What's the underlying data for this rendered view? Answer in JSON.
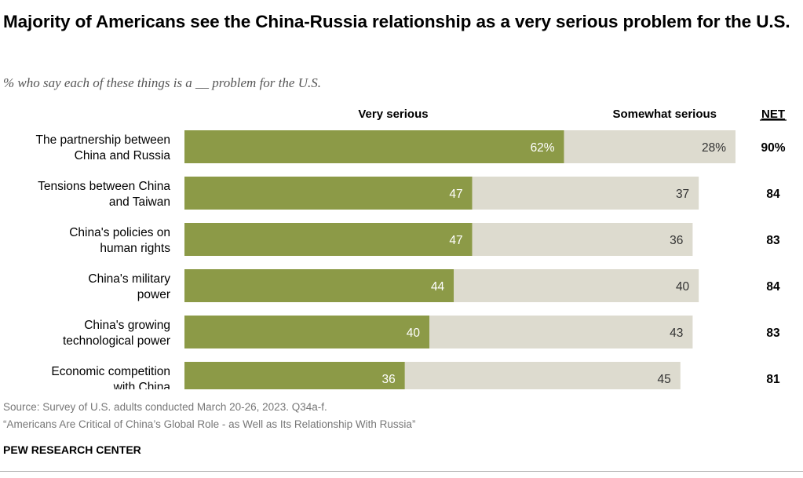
{
  "title": "Majority of Americans see the China-Russia relationship as a very serious problem for the U.S.",
  "subtitle": "% who say each of these things is a __ problem for the U.S.",
  "source": "Source: Survey of U.S. adults conducted March 20-26, 2023. Q34a-f.",
  "report": "“Americans Are Critical of China’s Global Role - as Well as Its Relationship With Russia”",
  "brand": "PEW RESEARCH CENTER",
  "colors": {
    "very_serious": "#8c9a47",
    "somewhat_serious": "#dddbcf",
    "source_text": "#777777"
  },
  "chart_data": {
    "type": "bar",
    "orientation": "horizontal",
    "stacked": true,
    "categories": [
      [
        "The partnership between",
        "China and Russia"
      ],
      [
        "Tensions between China",
        "and Taiwan"
      ],
      [
        "China's policies on",
        "human rights"
      ],
      [
        "China's military",
        "power"
      ],
      [
        "China's growing",
        "technological power"
      ],
      [
        "Economic competition",
        "with China"
      ]
    ],
    "series": [
      {
        "name": "Very serious",
        "values": [
          62,
          47,
          47,
          44,
          40,
          36
        ],
        "labels": [
          "62%",
          "47",
          "47",
          "44",
          "40",
          "36"
        ]
      },
      {
        "name": "Somewhat serious",
        "values": [
          28,
          37,
          36,
          40,
          43,
          45
        ],
        "labels": [
          "28%",
          "37",
          "36",
          "40",
          "43",
          "45"
        ]
      }
    ],
    "net": {
      "header": "NET",
      "values": [
        90,
        84,
        83,
        84,
        83,
        81
      ],
      "labels": [
        "90%",
        "84",
        "83",
        "84",
        "83",
        "81"
      ]
    },
    "xlim": [
      0,
      100
    ],
    "grid": false,
    "legend_placement": "top"
  }
}
